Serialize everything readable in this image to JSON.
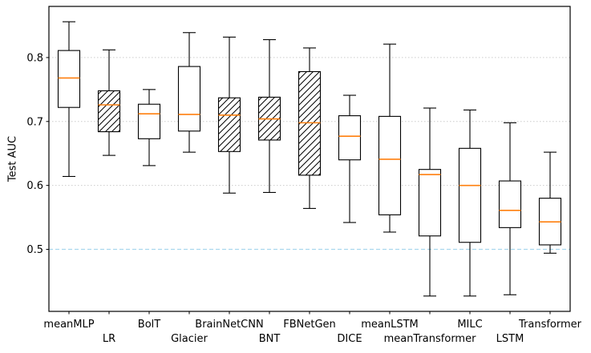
{
  "chart_data": {
    "type": "boxplot",
    "title": "",
    "xlabel": "",
    "ylabel": "Test AUC",
    "ylim": [
      0.403,
      0.88
    ],
    "yticks": [
      0.5,
      0.6,
      0.7,
      0.8
    ],
    "grid_values": [
      0.6,
      0.7,
      0.8
    ],
    "grid_style": "dotted",
    "reference_line": {
      "value": 0.5,
      "style": "dashed",
      "color": "#a9d7ee"
    },
    "categories": [
      "meanMLP",
      "LR",
      "BolT",
      "Glacier",
      "BrainNetCNN",
      "BNT",
      "FBNetGen",
      "DICE",
      "meanLSTM",
      "meanTransformer",
      "MILC",
      "LSTM",
      "Transformer"
    ],
    "boxes": [
      {
        "label": "meanMLP",
        "whislo": 0.614,
        "q1": 0.722,
        "med": 0.768,
        "q3": 0.811,
        "whishi": 0.856,
        "hatched": false
      },
      {
        "label": "LR",
        "whislo": 0.647,
        "q1": 0.684,
        "med": 0.726,
        "q3": 0.748,
        "whishi": 0.812,
        "hatched": true
      },
      {
        "label": "BolT",
        "whislo": 0.631,
        "q1": 0.673,
        "med": 0.712,
        "q3": 0.727,
        "whishi": 0.75,
        "hatched": false
      },
      {
        "label": "Glacier",
        "whislo": 0.652,
        "q1": 0.685,
        "med": 0.711,
        "q3": 0.786,
        "whishi": 0.839,
        "hatched": false
      },
      {
        "label": "BrainNetCNN",
        "whislo": 0.588,
        "q1": 0.653,
        "med": 0.71,
        "q3": 0.737,
        "whishi": 0.832,
        "hatched": true
      },
      {
        "label": "BNT",
        "whislo": 0.589,
        "q1": 0.671,
        "med": 0.704,
        "q3": 0.738,
        "whishi": 0.828,
        "hatched": true
      },
      {
        "label": "FBNetGen",
        "whislo": 0.564,
        "q1": 0.616,
        "med": 0.698,
        "q3": 0.778,
        "whishi": 0.815,
        "hatched": true
      },
      {
        "label": "DICE",
        "whislo": 0.542,
        "q1": 0.64,
        "med": 0.677,
        "q3": 0.709,
        "whishi": 0.741,
        "hatched": false
      },
      {
        "label": "meanLSTM",
        "whislo": 0.527,
        "q1": 0.554,
        "med": 0.641,
        "q3": 0.708,
        "whishi": 0.821,
        "hatched": false
      },
      {
        "label": "meanTransformer",
        "whislo": 0.427,
        "q1": 0.521,
        "med": 0.617,
        "q3": 0.625,
        "whishi": 0.721,
        "hatched": false
      },
      {
        "label": "MILC",
        "whislo": 0.427,
        "q1": 0.511,
        "med": 0.6,
        "q3": 0.658,
        "whishi": 0.718,
        "hatched": false
      },
      {
        "label": "LSTM",
        "whislo": 0.429,
        "q1": 0.534,
        "med": 0.561,
        "q3": 0.607,
        "whishi": 0.698,
        "hatched": false
      },
      {
        "label": "Transformer",
        "whislo": 0.494,
        "q1": 0.507,
        "med": 0.543,
        "q3": 0.58,
        "whishi": 0.652,
        "hatched": false
      }
    ],
    "colors": {
      "median": "#ff7f0e",
      "box_edge": "#000000",
      "box_fill": "#ffffff",
      "grid": "#cccccc",
      "reference_line": "#a9d7ee",
      "frame": "#000000",
      "background": "#ffffff"
    }
  }
}
